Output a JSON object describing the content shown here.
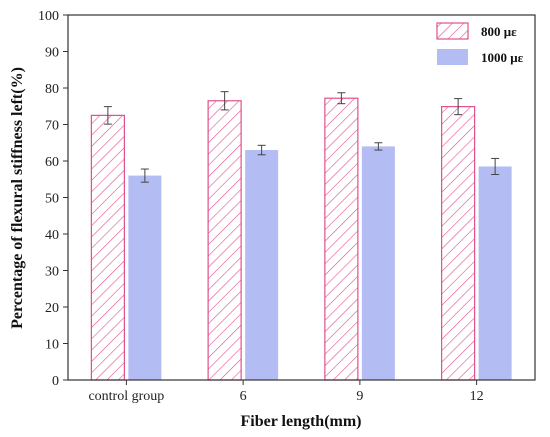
{
  "chart_data": {
    "type": "bar",
    "categories": [
      "control group",
      "6",
      "9",
      "12"
    ],
    "series": [
      {
        "name": "800 με",
        "values": [
          72.5,
          76.5,
          77.2,
          74.9
        ],
        "errors": [
          2.4,
          2.5,
          1.5,
          2.2
        ],
        "color": "#e0508c",
        "style": "hatched"
      },
      {
        "name": "1000 με",
        "values": [
          56.0,
          63.0,
          64.0,
          58.5
        ],
        "errors": [
          1.8,
          1.3,
          1.0,
          2.2
        ],
        "color": "#b3bcf3",
        "style": "solid"
      }
    ],
    "xlabel": "Fiber length(mm)",
    "ylabel": "Percentage of flexural stiffness left(%)",
    "ylim": [
      0,
      100
    ],
    "yticks": [
      0,
      10,
      20,
      30,
      40,
      50,
      60,
      70,
      80,
      90,
      100
    ],
    "grid": false,
    "legend_position": "top-right"
  }
}
